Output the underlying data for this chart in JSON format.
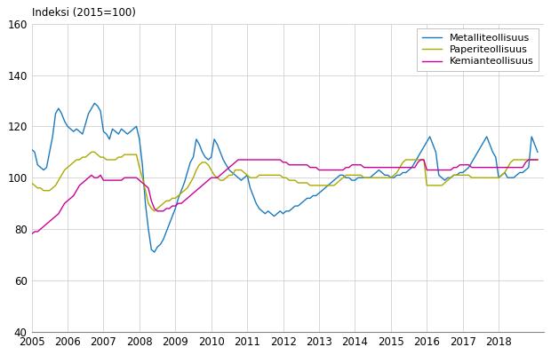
{
  "title": "Indeksi (2015=100)",
  "ylim": [
    40,
    160
  ],
  "yticks": [
    40,
    60,
    80,
    100,
    120,
    140,
    160
  ],
  "xlim_start": 2005.0,
  "xlim_end": 2019.25,
  "xtick_years": [
    2005,
    2006,
    2007,
    2008,
    2009,
    2010,
    2011,
    2012,
    2013,
    2014,
    2015,
    2016,
    2017,
    2018
  ],
  "line_colors": {
    "metal": "#1a7abf",
    "paper": "#aaaa00",
    "kemia": "#cc0099"
  },
  "legend_labels": [
    "Metalliteollisuus",
    "Paperiteollisuus",
    "Kemianteollisuus"
  ],
  "metal": [
    111,
    110,
    105,
    104,
    103,
    104,
    110,
    116,
    125,
    127,
    125,
    122,
    120,
    119,
    118,
    119,
    118,
    117,
    121,
    125,
    127,
    129,
    128,
    126,
    118,
    117,
    115,
    119,
    118,
    117,
    119,
    118,
    117,
    118,
    119,
    120,
    115,
    105,
    90,
    80,
    72,
    71,
    73,
    74,
    76,
    79,
    82,
    85,
    88,
    92,
    95,
    98,
    102,
    106,
    108,
    115,
    113,
    110,
    108,
    107,
    108,
    115,
    113,
    110,
    107,
    105,
    103,
    102,
    101,
    100,
    99,
    100,
    101,
    96,
    93,
    90,
    88,
    87,
    86,
    87,
    86,
    85,
    86,
    87,
    86,
    87,
    87,
    88,
    89,
    89,
    90,
    91,
    92,
    92,
    93,
    93,
    94,
    95,
    96,
    97,
    98,
    99,
    100,
    101,
    101,
    100,
    100,
    99,
    99,
    100,
    100,
    100,
    100,
    100,
    101,
    102,
    103,
    102,
    101,
    101,
    100,
    100,
    101,
    101,
    102,
    102,
    103,
    104,
    106,
    108,
    110,
    112,
    114,
    116,
    113,
    110,
    101,
    100,
    99,
    100,
    100,
    101,
    101,
    102,
    102,
    103,
    104,
    106,
    108,
    110,
    112,
    114,
    116,
    113,
    110,
    108,
    100,
    101,
    102,
    100,
    100,
    100,
    101,
    102,
    102,
    103,
    104,
    116,
    113,
    110
  ],
  "paper": [
    98,
    97,
    96,
    96,
    95,
    95,
    95,
    96,
    97,
    99,
    101,
    103,
    104,
    105,
    106,
    107,
    107,
    108,
    108,
    109,
    110,
    110,
    109,
    108,
    108,
    107,
    107,
    107,
    107,
    108,
    108,
    109,
    109,
    109,
    109,
    109,
    104,
    100,
    95,
    90,
    88,
    87,
    88,
    89,
    90,
    91,
    91,
    92,
    92,
    93,
    94,
    95,
    96,
    98,
    100,
    103,
    105,
    106,
    106,
    105,
    103,
    101,
    100,
    99,
    99,
    100,
    101,
    101,
    103,
    103,
    103,
    102,
    101,
    100,
    100,
    100,
    101,
    101,
    101,
    101,
    101,
    101,
    101,
    101,
    100,
    100,
    99,
    99,
    99,
    98,
    98,
    98,
    98,
    97,
    97,
    97,
    97,
    97,
    97,
    97,
    97,
    97,
    98,
    99,
    100,
    101,
    101,
    101,
    101,
    101,
    101,
    100,
    100,
    100,
    100,
    100,
    100,
    100,
    100,
    100,
    100,
    101,
    102,
    104,
    106,
    107,
    107,
    107,
    107,
    107,
    107,
    107,
    97,
    97,
    97,
    97,
    97,
    97,
    98,
    99,
    100,
    101,
    101,
    101,
    101,
    101,
    101,
    100,
    100,
    100,
    100,
    100,
    100,
    100,
    100,
    100,
    100,
    101,
    102,
    104,
    106,
    107,
    107,
    107,
    107,
    107,
    107,
    107,
    107,
    107
  ],
  "kemia": [
    78,
    79,
    79,
    80,
    81,
    82,
    83,
    84,
    85,
    86,
    88,
    90,
    91,
    92,
    93,
    95,
    97,
    98,
    99,
    100,
    101,
    100,
    100,
    101,
    99,
    99,
    99,
    99,
    99,
    99,
    99,
    100,
    100,
    100,
    100,
    100,
    99,
    98,
    97,
    96,
    91,
    88,
    87,
    87,
    87,
    88,
    88,
    89,
    89,
    90,
    90,
    91,
    92,
    93,
    94,
    95,
    96,
    97,
    98,
    99,
    100,
    100,
    100,
    101,
    102,
    103,
    104,
    105,
    106,
    107,
    107,
    107,
    107,
    107,
    107,
    107,
    107,
    107,
    107,
    107,
    107,
    107,
    107,
    107,
    106,
    106,
    105,
    105,
    105,
    105,
    105,
    105,
    105,
    104,
    104,
    104,
    103,
    103,
    103,
    103,
    103,
    103,
    103,
    103,
    103,
    104,
    104,
    105,
    105,
    105,
    105,
    104,
    104,
    104,
    104,
    104,
    104,
    104,
    104,
    104,
    104,
    104,
    104,
    104,
    104,
    104,
    104,
    104,
    104,
    106,
    107,
    107,
    103,
    103,
    103,
    103,
    103,
    103,
    103,
    103,
    103,
    104,
    104,
    105,
    105,
    105,
    105,
    104,
    104,
    104,
    104,
    104,
    104,
    104,
    104,
    104,
    104,
    104,
    104,
    104,
    104,
    104,
    104,
    104,
    104,
    106,
    107,
    107,
    107,
    107
  ]
}
